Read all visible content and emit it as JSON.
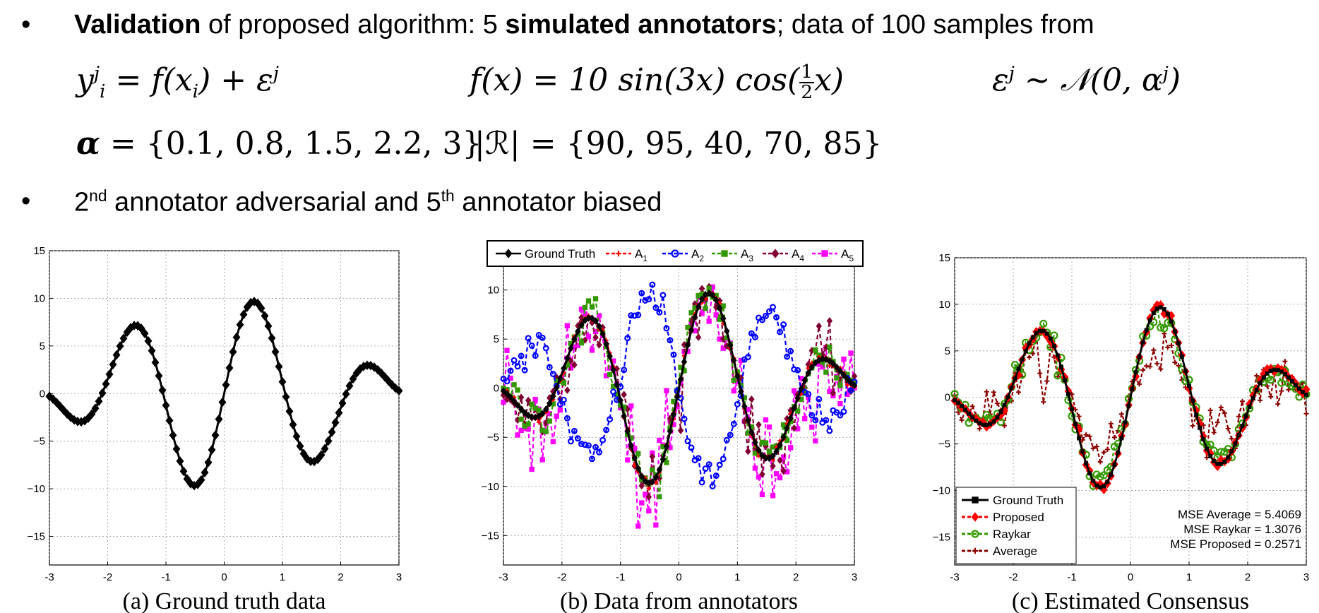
{
  "header": {
    "bullet1": {
      "bold1": "Validation",
      "text1": " of proposed algorithm: 5 ",
      "bold2": "simulated annotators",
      "text2": "; data of 100 samples from"
    },
    "eq1": "y",
    "eq_f": "f(x) = 10 sin(3x) cos(",
    "eq_noise": "ε",
    "alpha_label": "α",
    "alpha_values": "= {0.1, 0.8, 1.5, 2.2, 3}",
    "R_label": "|ℛ|",
    "R_values": "= {90, 95, 40, 70, 85}",
    "bullet2": {
      "t1": "2",
      "s1": "nd",
      "t2": " annotator adversarial and 5",
      "s2": "th",
      "t3": " annotator biased"
    },
    "bullet_symbol": "•"
  },
  "chart_data": [
    {
      "type": "line",
      "function": "10*sin(3x)*cos(x/2)",
      "x_range": [
        -3,
        3
      ],
      "n_points": 100,
      "series": [
        {
          "name": "Ground Truth",
          "color": "#000000",
          "marker": "diamond"
        }
      ],
      "caption": "(a) Ground truth data",
      "xlim": [
        -3,
        3
      ],
      "ylim": [
        -18,
        15
      ],
      "xticks": [
        "-3",
        "-2",
        "-1",
        "0",
        "1",
        "2",
        "3"
      ],
      "yticks": [
        "15",
        "10",
        "5",
        "0",
        "−5",
        "−10",
        "−15"
      ],
      "grid": true
    },
    {
      "type": "line",
      "caption": "(b) Data from annotators",
      "xlim": [
        -3,
        3
      ],
      "ylim": [
        -18,
        14
      ],
      "xticks": [
        "-3",
        "-2",
        "-1",
        "0",
        "1",
        "2",
        "3"
      ],
      "yticks": [
        "10",
        "5",
        "0",
        "−5",
        "−10",
        "−15"
      ],
      "grid": true,
      "legend_position": "top",
      "series": [
        {
          "name": "Ground Truth",
          "color": "#000000",
          "marker": "diamond"
        },
        {
          "name": "A1",
          "color": "#ff0000",
          "marker": "plus"
        },
        {
          "name": "A2",
          "color": "#0000ff",
          "marker": "circle"
        },
        {
          "name": "A3",
          "color": "#339900",
          "marker": "square"
        },
        {
          "name": "A4",
          "color": "#800033",
          "marker": "diamond"
        },
        {
          "name": "A5",
          "color": "#ff00ff",
          "marker": "square"
        }
      ]
    },
    {
      "type": "line",
      "caption": "(c) Estimated Consensus",
      "xlim": [
        -3,
        3
      ],
      "ylim": [
        -18,
        15
      ],
      "xticks": [
        "-3",
        "-2",
        "-1",
        "0",
        "1",
        "2",
        "3"
      ],
      "yticks": [
        "15",
        "10",
        "5",
        "0",
        "−5",
        "−10",
        "−15"
      ],
      "grid": true,
      "legend_position": "bottom-left",
      "series": [
        {
          "name": "Ground Truth",
          "color": "#000000",
          "marker": "square"
        },
        {
          "name": "Proposed",
          "color": "#ff0000",
          "marker": "diamond"
        },
        {
          "name": "Raykar",
          "color": "#339900",
          "marker": "circle"
        },
        {
          "name": "Average",
          "color": "#8b0000",
          "marker": "plus"
        }
      ],
      "annotations": [
        "MSE Average = 5.4069",
        "MSE Raykar = 1.3076",
        "MSE Proposed = 0.2571"
      ]
    }
  ]
}
